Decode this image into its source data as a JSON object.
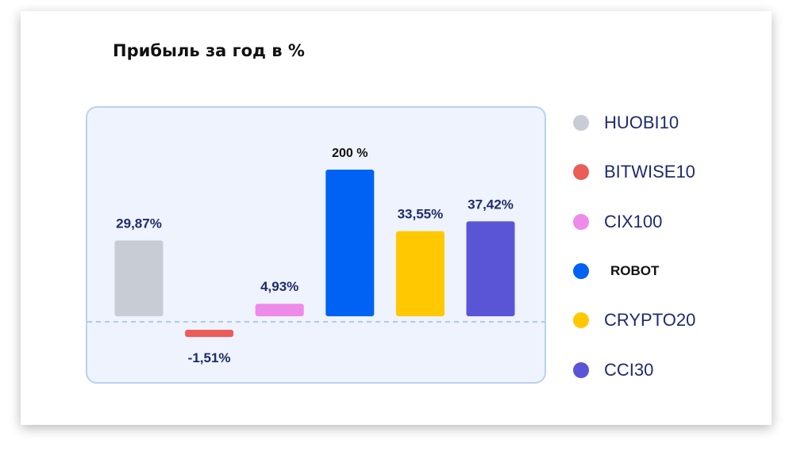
{
  "chart_data": {
    "type": "bar",
    "title": "Прибыль за год в %",
    "categories": [
      "HUOBI10",
      "BITWISE10",
      "CIX100",
      "ROBOT",
      "CRYPTO20",
      "CCI30"
    ],
    "values": [
      29.87,
      -1.51,
      4.93,
      200,
      33.55,
      37.42
    ],
    "data_labels": [
      "29,87%",
      "-1,51%",
      "4,93%",
      "200 %",
      "33,55%",
      "37,42%"
    ],
    "colors": [
      "#c8ccd4",
      "#eb5d58",
      "#ee8ae8",
      "#0062f5",
      "#ffc800",
      "#5a55d6"
    ],
    "zero_line": "dashed",
    "legend_position": "right",
    "legend_emphasis": "ROBOT",
    "grid": false,
    "background": "#eef3fd"
  }
}
